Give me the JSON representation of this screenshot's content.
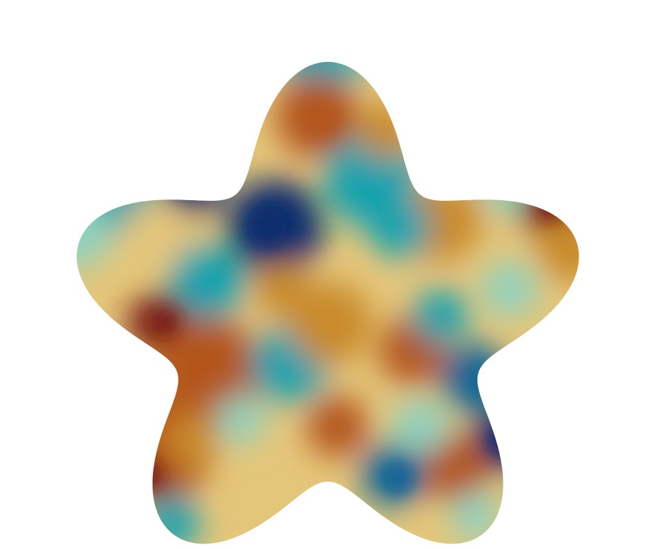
{
  "scene": {
    "background_color": "#ffffff",
    "shape": "five-lobed star",
    "colormap": [
      "#3b0a0a",
      "#9a3412",
      "#c2872a",
      "#e0c46e",
      "#d8d0c0",
      "#9ad0c4",
      "#17a3ad",
      "#0b5f8a",
      "#08306b"
    ],
    "blob_colors": {
      "deep_red": "#7a1b12",
      "rust": "#b4561c",
      "ochre": "#c98a2b",
      "sand": "#e4c67a",
      "pale": "#d6d2c6",
      "mint": "#8fd2c0",
      "teal": "#15a2ae",
      "blue": "#0c6597",
      "navy": "#0a2f6e"
    }
  }
}
